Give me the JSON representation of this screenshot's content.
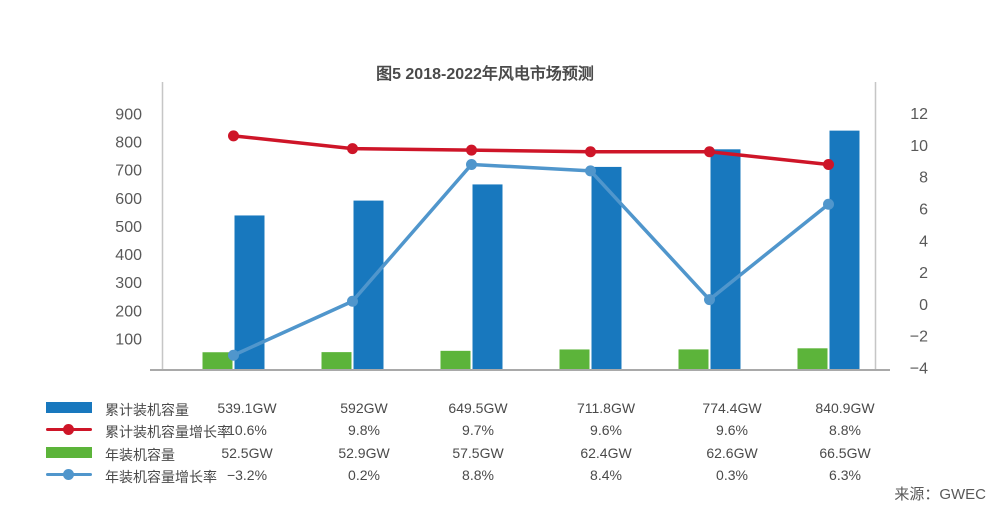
{
  "chart_data": {
    "type": "combo-bar-line",
    "title": "图5 2018-2022年风电市场预测",
    "source": "来源：GWEC",
    "n_categories": 6,
    "x_axis": {
      "labels_visible": false
    },
    "left_axis": {
      "ticks": [
        900,
        800,
        700,
        600,
        500,
        400,
        300,
        200,
        100
      ],
      "range": [
        0,
        970
      ],
      "unit": "GW"
    },
    "right_axis": {
      "ticks": [
        12,
        10,
        8,
        6,
        4,
        2,
        0,
        -2,
        -4
      ],
      "range": [
        -4.2,
        13.2
      ],
      "unit": "%"
    },
    "grid": false,
    "legend_position": "bottom-left-table",
    "colors": {
      "axis_line": "#C6C6C6",
      "baseline": "#A9A9A9",
      "text": "#595959"
    },
    "series": [
      {
        "key": "cumulative-capacity",
        "name": "累计装机容量",
        "type": "bar",
        "axis": "left",
        "side": "right",
        "color": "#1878BE",
        "unit": "GW",
        "values": [
          539.1,
          592,
          649.5,
          711.8,
          774.4,
          840.9
        ],
        "display": [
          "539.1GW",
          "592GW",
          "649.5GW",
          "711.8GW",
          "774.4GW",
          "840.9GW"
        ]
      },
      {
        "key": "cumulative-growth",
        "name": "累计装机容量增长率",
        "type": "line",
        "axis": "right",
        "color": "#CE1528",
        "unit": "%",
        "values": [
          10.6,
          9.8,
          9.7,
          9.6,
          9.6,
          8.8
        ],
        "display": [
          "10.6%",
          "9.8%",
          "9.7%",
          "9.6%",
          "9.6%",
          "8.8%"
        ]
      },
      {
        "key": "annual-capacity",
        "name": "年装机容量",
        "type": "bar",
        "axis": "left",
        "side": "left",
        "color": "#5CB43A",
        "unit": "GW",
        "values": [
          52.5,
          52.9,
          57.5,
          62.4,
          62.6,
          66.5
        ],
        "display": [
          "52.5GW",
          "52.9GW",
          "57.5GW",
          "62.4GW",
          "62.6GW",
          "66.5GW"
        ]
      },
      {
        "key": "annual-growth",
        "name": "年装机容量增长率",
        "type": "line",
        "axis": "right",
        "color": "#5096CC",
        "unit": "%",
        "values": [
          -3.2,
          0.2,
          8.8,
          8.4,
          0.3,
          6.3
        ],
        "display": [
          "−3.2%",
          "0.2%",
          "8.8%",
          "8.4%",
          "0.3%",
          "6.3%"
        ]
      }
    ]
  }
}
